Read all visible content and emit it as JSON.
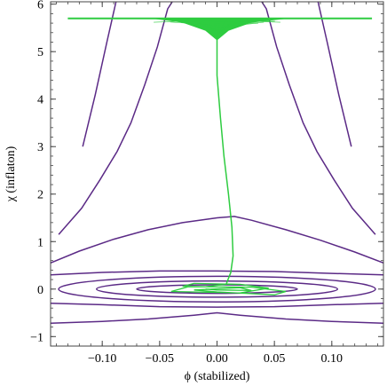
{
  "chart_data": {
    "type": "line",
    "title": "",
    "xlabel": "ϕ (stabilized)",
    "ylabel": "χ (inflaton)",
    "xlim": [
      -0.145,
      0.145
    ],
    "ylim": [
      -1.2,
      6.05
    ],
    "x_ticks": [
      {
        "value": -0.1,
        "label": "−0.10"
      },
      {
        "value": -0.05,
        "label": "−0.05"
      },
      {
        "value": 0.0,
        "label": "0.00"
      },
      {
        "value": 0.05,
        "label": "0.05"
      },
      {
        "value": 0.1,
        "label": "0.10"
      }
    ],
    "y_ticks": [
      {
        "value": -1,
        "label": "−1"
      },
      {
        "value": 0,
        "label": "0"
      },
      {
        "value": 1,
        "label": "1"
      },
      {
        "value": 2,
        "label": "2"
      },
      {
        "value": 3,
        "label": "3"
      },
      {
        "value": 4,
        "label": "4"
      },
      {
        "value": 5,
        "label": "5"
      },
      {
        "value": 6,
        "label": "6"
      }
    ],
    "grid": false,
    "colors": {
      "contour": "#5b2a86",
      "trajectory": "#2ecc40"
    },
    "contours": [
      {
        "points": [
          [
            -0.117,
            3.0
          ],
          [
            -0.106,
            4.1
          ],
          [
            -0.096,
            5.2
          ],
          [
            -0.088,
            6.05
          ]
        ]
      },
      {
        "points": [
          [
            0.117,
            3.0
          ],
          [
            0.106,
            4.1
          ],
          [
            0.096,
            5.2
          ],
          [
            0.088,
            6.05
          ]
        ]
      },
      {
        "points": [
          [
            -0.138,
            1.15
          ],
          [
            -0.118,
            1.7
          ],
          [
            -0.102,
            2.3
          ],
          [
            -0.087,
            2.9
          ],
          [
            -0.075,
            3.5
          ],
          [
            -0.063,
            4.3
          ],
          [
            -0.052,
            5.1
          ],
          [
            -0.043,
            5.9
          ],
          [
            -0.039,
            6.05
          ]
        ]
      },
      {
        "points": [
          [
            0.138,
            1.15
          ],
          [
            0.118,
            1.7
          ],
          [
            0.102,
            2.3
          ],
          [
            0.087,
            2.9
          ],
          [
            0.075,
            3.5
          ],
          [
            0.063,
            4.3
          ],
          [
            0.052,
            5.1
          ],
          [
            0.043,
            5.9
          ],
          [
            0.039,
            6.05
          ]
        ]
      },
      {
        "points": [
          [
            -0.145,
            0.55
          ],
          [
            -0.12,
            0.8
          ],
          [
            -0.09,
            1.05
          ],
          [
            -0.06,
            1.25
          ],
          [
            -0.03,
            1.4
          ],
          [
            0.0,
            1.5
          ],
          [
            0.015,
            1.53
          ],
          [
            0.03,
            1.45
          ],
          [
            0.06,
            1.25
          ],
          [
            0.09,
            1.03
          ],
          [
            0.12,
            0.78
          ],
          [
            0.145,
            0.55
          ]
        ]
      },
      {
        "points": [
          [
            -0.145,
            0.3
          ],
          [
            -0.1,
            0.35
          ],
          [
            -0.05,
            0.38
          ],
          [
            0.0,
            0.38
          ],
          [
            0.05,
            0.37
          ],
          [
            0.1,
            0.33
          ],
          [
            0.145,
            0.3
          ]
        ]
      },
      {
        "points": [
          [
            -0.145,
            -0.3
          ],
          [
            -0.1,
            -0.33
          ],
          [
            -0.05,
            -0.37
          ],
          [
            0.0,
            -0.38
          ],
          [
            0.05,
            -0.37
          ],
          [
            0.1,
            -0.33
          ],
          [
            0.145,
            -0.3
          ]
        ]
      },
      {
        "points": [
          [
            -0.145,
            -0.72
          ],
          [
            -0.1,
            -0.68
          ],
          [
            -0.06,
            -0.63
          ],
          [
            -0.02,
            -0.55
          ],
          [
            0.0,
            -0.5
          ],
          [
            0.02,
            -0.55
          ],
          [
            0.06,
            -0.63
          ],
          [
            0.1,
            -0.68
          ],
          [
            0.145,
            -0.72
          ]
        ]
      },
      {
        "ellipse": [
          0.0,
          0.0,
          0.138,
          0.27
        ]
      },
      {
        "ellipse": [
          0.0,
          0.0,
          0.105,
          0.17
        ]
      },
      {
        "ellipse": [
          0.0,
          0.0,
          0.07,
          0.09
        ]
      }
    ],
    "trajectory": {
      "band_top": 5.7,
      "band_xrange": [
        -0.13,
        0.135
      ],
      "funnel": [
        [
          -0.055,
          5.7
        ],
        [
          -0.03,
          5.62
        ],
        [
          -0.01,
          5.45
        ],
        [
          0.0,
          5.25
        ],
        [
          0.01,
          5.45
        ],
        [
          0.03,
          5.62
        ],
        [
          0.06,
          5.7
        ]
      ],
      "descent": [
        [
          0.0,
          5.25
        ],
        [
          0.0,
          4.5
        ],
        [
          0.003,
          3.6
        ],
        [
          0.006,
          2.8
        ],
        [
          0.01,
          2.0
        ],
        [
          0.013,
          1.3
        ],
        [
          0.014,
          0.7
        ],
        [
          0.012,
          0.35
        ],
        [
          0.008,
          0.1
        ]
      ],
      "spiral": [
        [
          0.008,
          0.1
        ],
        [
          -0.01,
          0.05
        ],
        [
          -0.03,
          0.06
        ],
        [
          -0.02,
          0.12
        ],
        [
          0.02,
          0.1
        ],
        [
          0.045,
          0.02
        ],
        [
          0.02,
          -0.08
        ],
        [
          -0.04,
          -0.05
        ],
        [
          -0.025,
          0.05
        ],
        [
          0.03,
          0.04
        ],
        [
          0.06,
          -0.05
        ],
        [
          0.05,
          -0.12
        ],
        [
          0.0,
          -0.06
        ],
        [
          -0.02,
          -0.02
        ],
        [
          0.02,
          0.03
        ],
        [
          0.03,
          -0.03
        ],
        [
          0.0,
          -0.02
        ],
        [
          -0.01,
          0.0
        ]
      ]
    }
  }
}
